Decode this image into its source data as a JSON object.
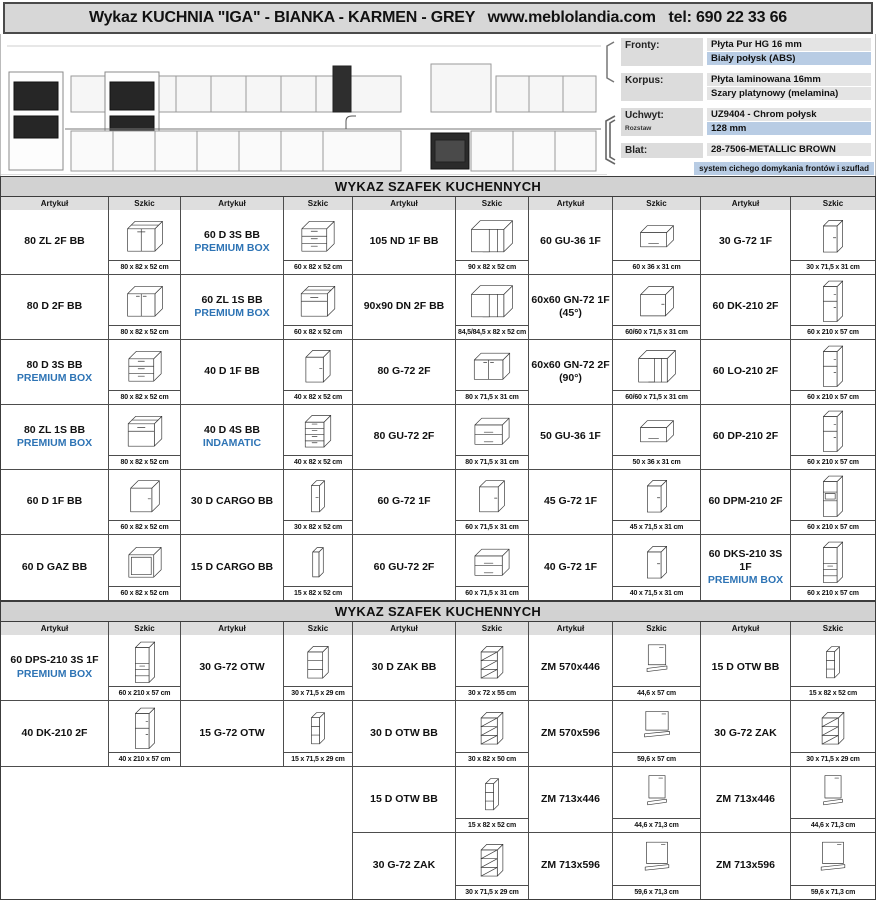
{
  "title_bar": {
    "text": "Wykaz KUCHNIA \"IGA\" - BIANKA - KARMEN - GREY   www.meblolandia.com   tel: 690 22 33 66"
  },
  "specs": {
    "rows": [
      {
        "label": "Fronty:",
        "sub": "",
        "lines": [
          {
            "t": "Płyta Pur HG 16 mm",
            "hl": false
          },
          {
            "t": "Biały połysk (ABS)",
            "hl": true
          }
        ]
      },
      {
        "label": "Korpus:",
        "sub": "",
        "lines": [
          {
            "t": "Płyta laminowana 16mm",
            "hl": false
          },
          {
            "t": "Szary platynowy (melamina)",
            "hl": false
          }
        ]
      },
      {
        "label": "Uchwyt:",
        "sub": "Rozstaw",
        "lines": [
          {
            "t": "UZ9404 - Chrom połysk",
            "hl": false
          },
          {
            "t": "128 mm",
            "hl": true
          }
        ]
      },
      {
        "label": "Blat:",
        "sub": "",
        "lines": [
          {
            "t": "28-7506-METALLIC BROWN",
            "hl": false
          }
        ]
      }
    ],
    "footnote": "system cichego domykania frontów i szuflad"
  },
  "columns": {
    "artykul": "Artykuł",
    "szkic": "Szkic"
  },
  "sections": [
    {
      "title": "WYKAZ SZAFEK KUCHENNYCH",
      "rows": [
        [
          {
            "code": "80 ZL 2F BB",
            "badge": "",
            "dim": "80 x 82 x 52 cm",
            "shape": "sink"
          },
          {
            "code": "60 D 3S BB",
            "badge": "PREMIUM BOX",
            "dim": "60 x 82 x 52 cm",
            "shape": "drawers3"
          },
          {
            "code": "105 ND 1F BB",
            "badge": "",
            "dim": "90 x 82 x 52 cm",
            "shape": "corner"
          },
          {
            "code": "60 GU-36 1F",
            "badge": "",
            "dim": "60 x 36 x 31 cm",
            "shape": "flap"
          },
          {
            "code": "30 G-72 1F",
            "badge": "",
            "dim": "30 x 71,5 x 31 cm",
            "shape": "wall1"
          }
        ],
        [
          {
            "code": "80 D 2F BB",
            "badge": "",
            "dim": "80 x 82 x 52 cm",
            "shape": "base2"
          },
          {
            "code": "60 ZL 1S BB",
            "badge": "PREMIUM BOX",
            "dim": "60 x 82 x 52 cm",
            "shape": "sink1"
          },
          {
            "code": "90x90 DN 2F BB",
            "badge": "",
            "dim": "84,5/84,5 x 82 x 52 cm",
            "shape": "corner"
          },
          {
            "code": "60x60 GN-72 1F",
            "code2": "(45°)",
            "badge": "",
            "dim": "60/60  x 71,5 x 31 cm",
            "shape": "corner45"
          },
          {
            "code": "60 DK-210 2F",
            "badge": "",
            "dim": "60 x 210 x 57 cm",
            "shape": "tall"
          }
        ],
        [
          {
            "code": "80 D 3S BB",
            "badge": "PREMIUM BOX",
            "dim": "80 x 82 x 52 cm",
            "shape": "drawers3"
          },
          {
            "code": "40 D 1F BB",
            "badge": "",
            "dim": "40 x 82 x 52 cm",
            "shape": "base1"
          },
          {
            "code": "80 G-72 2F",
            "badge": "",
            "dim": "80 x 71,5 x 31 cm",
            "shape": "wallwide"
          },
          {
            "code": "60x60 GN-72 2F",
            "code2": "(90°)",
            "badge": "",
            "dim": "60/60  x 71,5 x 31 cm",
            "shape": "corner90"
          },
          {
            "code": "60 LO-210 2F",
            "badge": "",
            "dim": "60 x 210 x 57 cm",
            "shape": "tall"
          }
        ],
        [
          {
            "code": "80 ZL 1S BB",
            "badge": "PREMIUM BOX",
            "dim": "80 x 82 x 52 cm",
            "shape": "sink1"
          },
          {
            "code": "40 D 4S BB",
            "badge": "INDAMATIC",
            "dim": "40 x 82 x 52 cm",
            "shape": "drawers4"
          },
          {
            "code": "80 GU-72 2F",
            "badge": "",
            "dim": "80 x 71,5 x 31 cm",
            "shape": "flap2"
          },
          {
            "code": "50 GU-36 1F",
            "badge": "",
            "dim": "50 x 36 x 31 cm",
            "shape": "flap"
          },
          {
            "code": "60 DP-210 2F",
            "badge": "",
            "dim": "60 x 210 x 57 cm",
            "shape": "tall"
          }
        ],
        [
          {
            "code": "60 D 1F BB",
            "badge": "",
            "dim": "60 x 82 x 52 cm",
            "shape": "base1w"
          },
          {
            "code": "30 D CARGO BB",
            "badge": "",
            "dim": "30 x 82 x 52 cm",
            "shape": "cargo"
          },
          {
            "code": "60 G-72 1F",
            "badge": "",
            "dim": "60 x 71,5 x 31 cm",
            "shape": "wall1w"
          },
          {
            "code": "45 G-72 1F",
            "badge": "",
            "dim": "45 x 71,5 x 31 cm",
            "shape": "wall1"
          },
          {
            "code": "60 DPM-210 2F",
            "badge": "",
            "dim": "60 x 210 x 57 cm",
            "shape": "tallniche"
          }
        ],
        [
          {
            "code": "60 D GAZ BB",
            "badge": "",
            "dim": "60 x 82 x 52 cm",
            "shape": "frame"
          },
          {
            "code": "15 D CARGO BB",
            "badge": "",
            "dim": "15 x 82 x 52 cm",
            "shape": "cargoS"
          },
          {
            "code": "60 GU-72 2F",
            "badge": "",
            "dim": "60 x 71,5 x 31 cm",
            "shape": "flap2"
          },
          {
            "code": "40 G-72 1F",
            "badge": "",
            "dim": "40 x 71,5 x 31 cm",
            "shape": "wall1"
          },
          {
            "code": "60 DKS-210 3S 1F",
            "badge": "PREMIUM BOX",
            "dim": "60 x 210 x 57 cm",
            "shape": "talldrw"
          }
        ]
      ]
    },
    {
      "title": "WYKAZ SZAFEK KUCHENNYCH",
      "rows": [
        [
          {
            "code": "60 DPS-210 3S 1F",
            "badge": "PREMIUM BOX",
            "dim": "60 x 210 x 57 cm",
            "shape": "talldrw"
          },
          {
            "code": "30 G-72 OTW",
            "badge": "",
            "dim": "30 x 71,5 x 29 cm",
            "shape": "shelf"
          },
          {
            "code": "30 D ZAK BB",
            "badge": "",
            "dim": "30 x 72 x 55 cm",
            "shape": "zak"
          },
          {
            "code": "ZM 570x446",
            "badge": "",
            "dim": "44,6 x 57 cm",
            "shape": "panel"
          },
          {
            "code": "15 D OTW BB",
            "badge": "",
            "dim": "15 x 82 x 52 cm",
            "shape": "shelfS"
          }
        ],
        [
          {
            "code": "40 DK-210 2F",
            "badge": "",
            "dim": "40 x 210 x 57 cm",
            "shape": "tall"
          },
          {
            "code": "15 G-72 OTW",
            "badge": "",
            "dim": "15 x 71,5 x 29 cm",
            "shape": "shelfS"
          },
          {
            "code": "30 D OTW BB",
            "badge": "",
            "dim": "30 x 82 x 50 cm",
            "shape": "zak"
          },
          {
            "code": "ZM 570x596",
            "badge": "",
            "dim": "59,6 x 57 cm",
            "shape": "panelw"
          },
          {
            "code": "30 G-72 ZAK",
            "badge": "",
            "dim": "30 x 71,5 x 29 cm",
            "shape": "zak"
          }
        ],
        [
          null,
          null,
          {
            "code": "15 D OTW BB",
            "badge": "",
            "dim": "15 x 82 x 52 cm",
            "shape": "shelfS"
          },
          {
            "code": "ZM 713x446",
            "badge": "",
            "dim": "44,6 x 71,3 cm",
            "shape": "panelT"
          },
          {
            "code": "ZM 713x446",
            "badge": "",
            "dim": "44,6 x 71,3 cm",
            "shape": "panelT"
          }
        ],
        [
          null,
          null,
          {
            "code": "30 G-72 ZAK",
            "badge": "",
            "dim": "30 x 71,5 x 29 cm",
            "shape": "zak"
          },
          {
            "code": "ZM 713x596",
            "badge": "",
            "dim": "59,6 x 71,3 cm",
            "shape": "panelTw"
          },
          {
            "code": "ZM 713x596",
            "badge": "",
            "dim": "59,6 x 71,3 cm",
            "shape": "panelTw"
          }
        ]
      ]
    }
  ]
}
